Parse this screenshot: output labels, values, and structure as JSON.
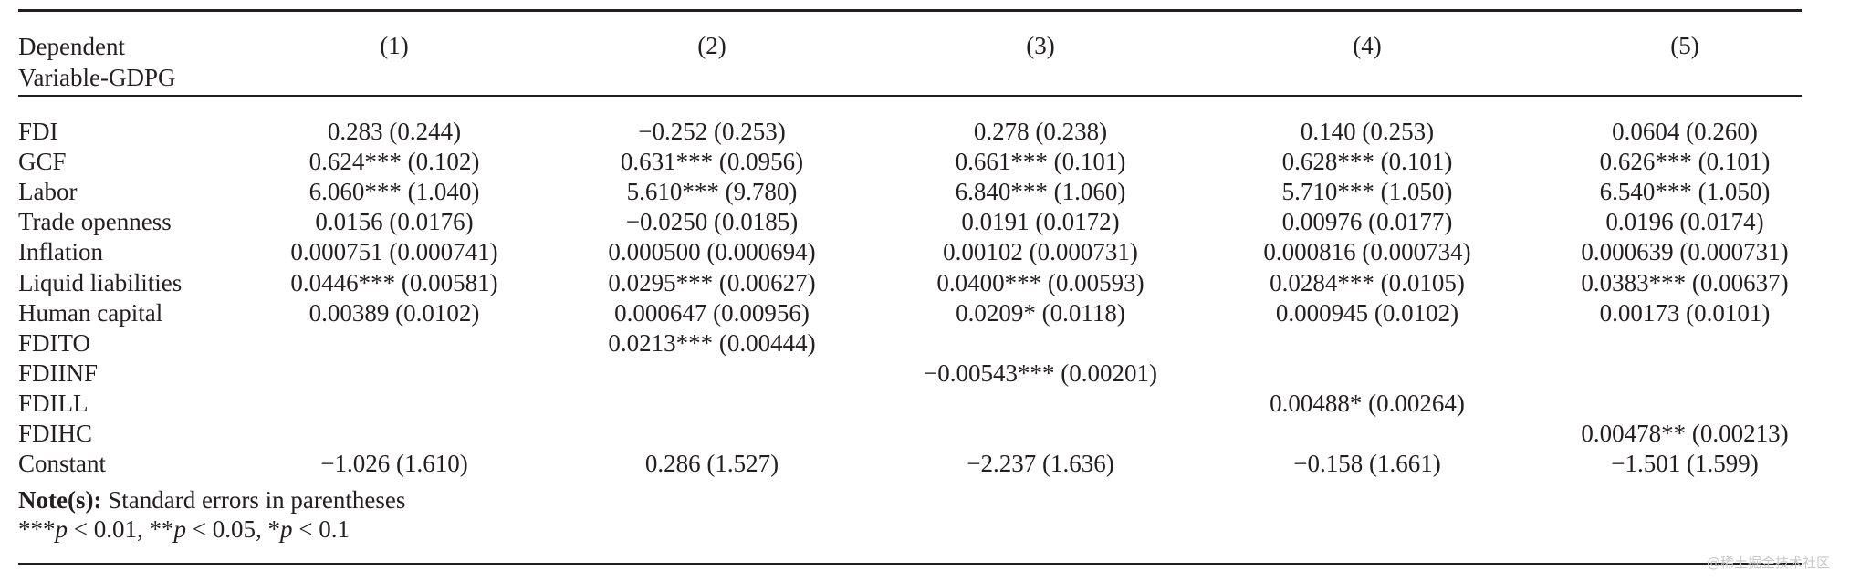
{
  "table": {
    "header_label": "Dependent\nVariable-GDPG",
    "columns": [
      "(1)",
      "(2)",
      "(3)",
      "(4)",
      "(5)"
    ],
    "rows": [
      {
        "label": "FDI",
        "values": [
          "0.283 (0.244)",
          "−0.252 (0.253)",
          "0.278 (0.238)",
          "0.140 (0.253)",
          "0.0604 (0.260)"
        ]
      },
      {
        "label": "GCF",
        "values": [
          "0.624*** (0.102)",
          "0.631*** (0.0956)",
          "0.661*** (0.101)",
          "0.628*** (0.101)",
          "0.626*** (0.101)"
        ]
      },
      {
        "label": "Labor",
        "values": [
          "6.060*** (1.040)",
          "5.610*** (9.780)",
          "6.840*** (1.060)",
          "5.710*** (1.050)",
          "6.540*** (1.050)"
        ]
      },
      {
        "label": "Trade openness",
        "values": [
          "0.0156 (0.0176)",
          "−0.0250 (0.0185)",
          "0.0191 (0.0172)",
          "0.00976 (0.0177)",
          "0.0196 (0.0174)"
        ]
      },
      {
        "label": "Inflation",
        "values": [
          "0.000751 (0.000741)",
          "0.000500 (0.000694)",
          "0.00102 (0.000731)",
          "0.000816 (0.000734)",
          "0.000639 (0.000731)"
        ]
      },
      {
        "label": "Liquid liabilities",
        "values": [
          "0.0446*** (0.00581)",
          "0.0295*** (0.00627)",
          "0.0400*** (0.00593)",
          "0.0284*** (0.0105)",
          "0.0383*** (0.00637)"
        ]
      },
      {
        "label": "Human capital",
        "values": [
          "0.00389 (0.0102)",
          "0.000647 (0.00956)",
          "0.0209* (0.0118)",
          "0.000945 (0.0102)",
          "0.00173 (0.0101)"
        ]
      },
      {
        "label": "FDITO",
        "values": [
          "",
          "0.0213*** (0.00444)",
          "",
          "",
          ""
        ]
      },
      {
        "label": "FDIINF",
        "values": [
          "",
          "",
          "−0.00543*** (0.00201)",
          "",
          ""
        ]
      },
      {
        "label": "FDILL",
        "values": [
          "",
          "",
          "",
          "0.00488* (0.00264)",
          ""
        ]
      },
      {
        "label": "FDIHC",
        "values": [
          "",
          "",
          "",
          "",
          "0.00478** (0.00213)"
        ]
      },
      {
        "label": "Constant",
        "values": [
          "−1.026 (1.610)",
          "0.286 (1.527)",
          "−2.237 (1.636)",
          "−0.158 (1.661)",
          "−1.501 (1.599)"
        ]
      }
    ]
  },
  "note": {
    "bold": "Note(s):",
    "text": " Standard errors in parentheses",
    "line2_parts": [
      "***",
      "p",
      " < 0.01, **",
      "p",
      " < 0.05, *",
      "p",
      " < 0.1"
    ]
  },
  "watermark": "@稀土掘金技术社区"
}
